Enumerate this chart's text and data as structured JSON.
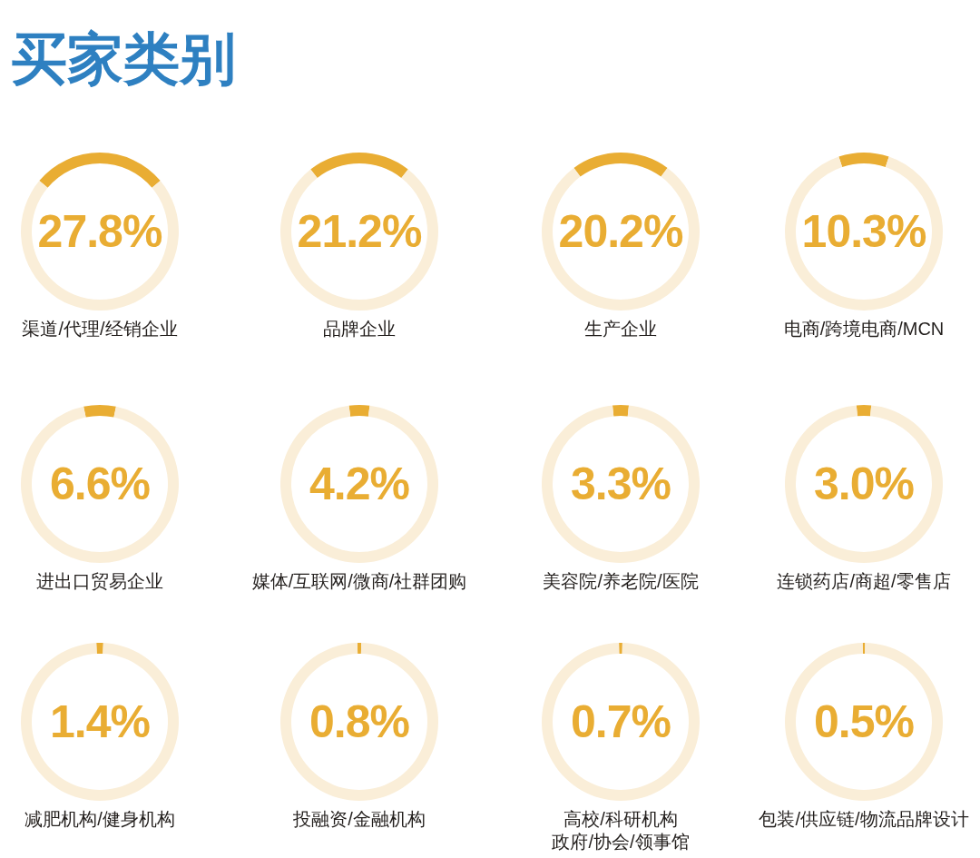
{
  "chart_data": [
    {
      "type": "other",
      "title": "买家类别"
    },
    {
      "type": "donut",
      "title": "渠道/代理/经销企业",
      "categories": [
        null,
        null
      ],
      "values": [
        27.8,
        72.2
      ],
      "colors": [
        "#e9ad33",
        "#faeed8"
      ],
      "annotations": [
        "27.8%"
      ]
    },
    {
      "type": "donut",
      "title": "品牌企业",
      "categories": [
        null,
        null
      ],
      "values": [
        21.2,
        78.8
      ],
      "colors": [
        "#e9ad33",
        "#faeed8"
      ],
      "annotations": [
        "21.2%"
      ]
    },
    {
      "type": "donut",
      "title": "生产企业",
      "categories": [
        null,
        null
      ],
      "values": [
        20.2,
        79.8
      ],
      "colors": [
        "#e9ad33",
        "#faeed8"
      ],
      "annotations": [
        "20.2%"
      ]
    },
    {
      "type": "donut",
      "title": "电商/跨境电商/MCN",
      "categories": [
        null,
        null
      ],
      "values": [
        10.3,
        89.7
      ],
      "colors": [
        "#e9ad33",
        "#faeed8"
      ],
      "annotations": [
        "10.3%"
      ]
    },
    {
      "type": "donut",
      "title": "进出口贸易企业",
      "categories": [
        null,
        null
      ],
      "values": [
        6.6,
        93.4
      ],
      "colors": [
        "#e9ad33",
        "#faeed8"
      ],
      "annotations": [
        "6.6%"
      ]
    },
    {
      "type": "donut",
      "title": "媒体/互联网/微商/社群团购",
      "categories": [
        null,
        null
      ],
      "values": [
        4.2,
        95.8
      ],
      "colors": [
        "#e9ad33",
        "#faeed8"
      ],
      "annotations": [
        "4.2%"
      ]
    },
    {
      "type": "donut",
      "title": "美容院/养老院/医院",
      "categories": [
        null,
        null
      ],
      "values": [
        3.3,
        96.7
      ],
      "colors": [
        "#e9ad33",
        "#faeed8"
      ],
      "annotations": [
        "3.3%"
      ]
    },
    {
      "type": "donut",
      "title": "连锁药店/商超/零售店",
      "categories": [
        null,
        null
      ],
      "values": [
        3.0,
        97.0
      ],
      "colors": [
        "#e9ad33",
        "#faeed8"
      ],
      "annotations": [
        "3.0%"
      ]
    },
    {
      "type": "donut",
      "title": "减肥机构/健身机构",
      "categories": [
        null,
        null
      ],
      "values": [
        1.4,
        98.6
      ],
      "colors": [
        "#e9ad33",
        "#faeed8"
      ],
      "annotations": [
        "1.4%"
      ]
    },
    {
      "type": "donut",
      "title": "投融资/金融机构",
      "categories": [
        null,
        null
      ],
      "values": [
        0.8,
        99.2
      ],
      "colors": [
        "#e9ad33",
        "#faeed8"
      ],
      "annotations": [
        "0.8%"
      ]
    },
    {
      "type": "donut",
      "title": "高校/科研机构政府/协会/领事馆",
      "categories": [
        null,
        null
      ],
      "values": [
        0.7,
        99.3
      ],
      "colors": [
        "#e9ad33",
        "#faeed8"
      ],
      "annotations": [
        "0.7%"
      ]
    },
    {
      "type": "donut",
      "title": "包装/供应链/物流品牌设计",
      "categories": [
        null,
        null
      ],
      "values": [
        0.5,
        99.5
      ],
      "colors": [
        "#e9ad33",
        "#faeed8"
      ],
      "annotations": [
        "0.5%"
      ]
    }
  ]
}
